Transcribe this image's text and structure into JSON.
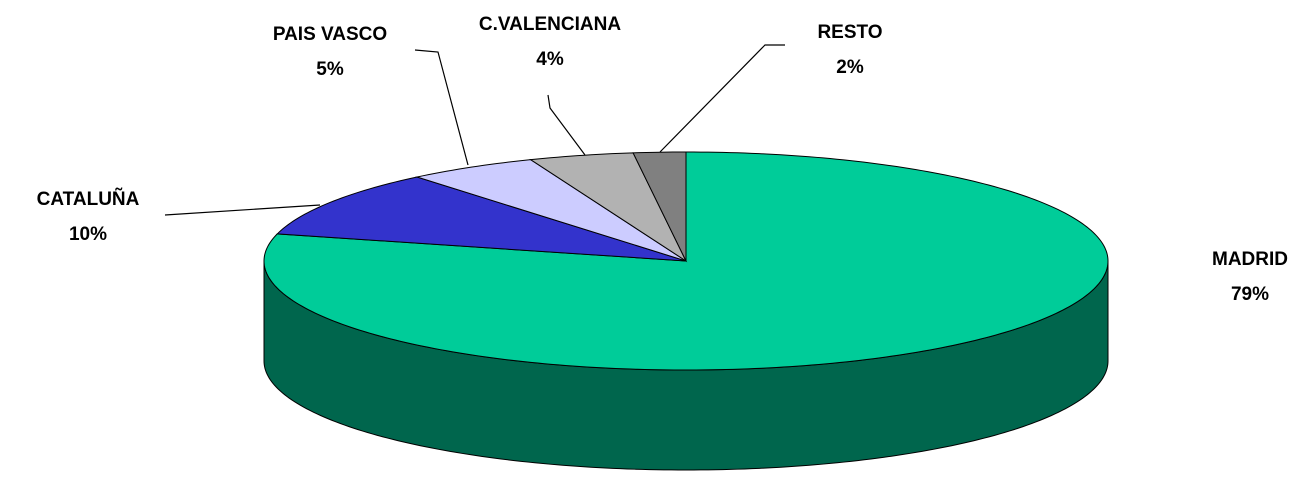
{
  "chart_data": {
    "type": "pie3d",
    "categories": [
      "MADRID",
      "CATALUÑA",
      "PAIS VASCO",
      "C.VALENCIANA",
      "RESTO"
    ],
    "values": [
      79,
      10,
      5,
      4,
      2
    ],
    "value_labels": [
      "79%",
      "10%",
      "5%",
      "4%",
      "2%"
    ],
    "colors": [
      "#00cc99",
      "#3333cc",
      "#ccccff",
      "#b2b2b2",
      "#808080"
    ]
  }
}
